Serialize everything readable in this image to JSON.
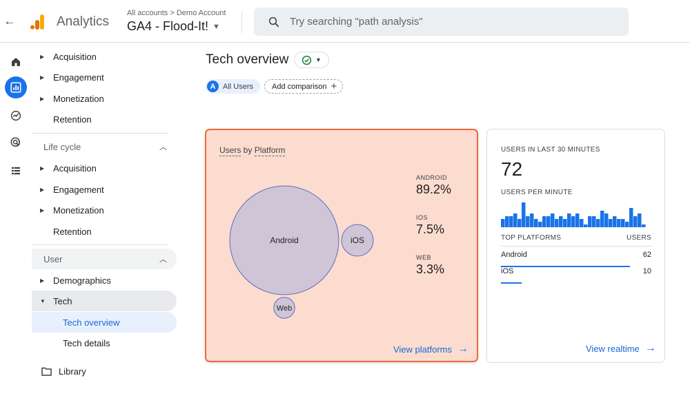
{
  "header": {
    "app_title": "Analytics",
    "breadcrumb": "All accounts > Demo Account",
    "property": "GA4 - Flood-It!",
    "search_placeholder": "Try searching \"path analysis\""
  },
  "nav": {
    "top_items": [
      "Acquisition",
      "Engagement",
      "Monetization",
      "Retention"
    ],
    "lifecycle": {
      "title": "Life cycle",
      "items": [
        "Acquisition",
        "Engagement",
        "Monetization",
        "Retention"
      ]
    },
    "user": {
      "title": "User",
      "items": [
        "Demographics",
        "Tech"
      ],
      "tech_sub": [
        "Tech overview",
        "Tech details"
      ]
    },
    "library": "Library"
  },
  "main": {
    "title": "Tech overview",
    "chip_users": "All Users",
    "chip_users_letter": "A",
    "chip_compare": "Add comparison"
  },
  "platform_card": {
    "title_part1": "Users",
    "title_mid": " by ",
    "title_part2": "Platform",
    "bubbles": [
      {
        "label": "Android",
        "share": 89.2
      },
      {
        "label": "iOS",
        "share": 7.5
      },
      {
        "label": "Web",
        "share": 3.3
      }
    ],
    "legend": [
      {
        "label": "ANDROID",
        "value": "89.2%"
      },
      {
        "label": "IOS",
        "value": "7.5%"
      },
      {
        "label": "WEB",
        "value": "3.3%"
      }
    ],
    "link": "View platforms"
  },
  "realtime_card": {
    "users_label": "USERS IN LAST 30 MINUTES",
    "users_value": "72",
    "per_minute_label": "USERS PER MINUTE",
    "per_minute": [
      3,
      4,
      4,
      5,
      3,
      9,
      4,
      5,
      3,
      2,
      4,
      4,
      5,
      3,
      4,
      3,
      5,
      4,
      5,
      3,
      1,
      4,
      4,
      3,
      6,
      5,
      3,
      4,
      3,
      3,
      2,
      7,
      4,
      5,
      1
    ],
    "top_platforms_label": "TOP PLATFORMS",
    "users_col_label": "USERS",
    "rows": [
      {
        "name": "Android",
        "value": "62"
      },
      {
        "name": "iOS",
        "value": "10"
      }
    ],
    "link": "View realtime"
  },
  "colors": {
    "accent": "#1a73e8",
    "highlight_border": "#f06a3a",
    "highlight_fill": "#fcdccf",
    "bubble_fill": "#cfc5d6",
    "bubble_stroke": "#5c6bc0"
  }
}
